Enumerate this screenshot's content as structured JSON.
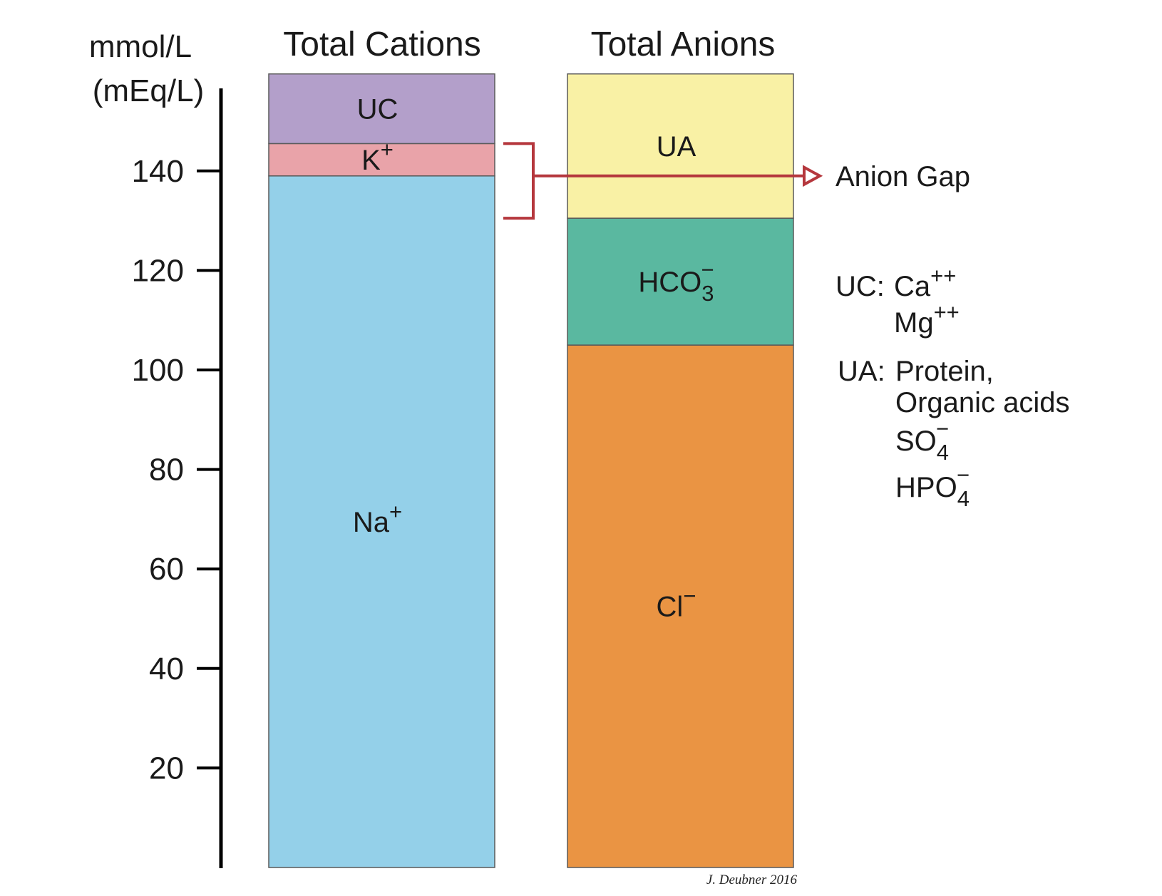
{
  "chart_data": {
    "type": "bar",
    "stacked": true,
    "y_axis": {
      "title_line1": "mmol/L",
      "title_line2": "(mEq/L)",
      "ticks": [
        20,
        40,
        60,
        80,
        100,
        120,
        140
      ],
      "ylim": [
        0,
        154
      ]
    },
    "columns": [
      {
        "title": "Total Cations",
        "segments": [
          {
            "key": "na",
            "base": "Na",
            "sup": "+",
            "sub": "",
            "value": 139,
            "color": "#94d0e9"
          },
          {
            "key": "k",
            "base": "K",
            "sup": "+",
            "sub": "",
            "value": 6.5,
            "color": "#e9a3a9"
          },
          {
            "key": "uc",
            "base": "UC",
            "sup": "",
            "sub": "",
            "value": 14,
            "color": "#b39fca"
          }
        ]
      },
      {
        "title": "Total Anions",
        "segments": [
          {
            "key": "cl",
            "base": "Cl",
            "sup": "−",
            "sub": "",
            "value": 105,
            "color": "#ea9443"
          },
          {
            "key": "hco3",
            "base": "HCO",
            "sup": "−",
            "sub": "3",
            "value": 25.5,
            "color": "#5ab8a0"
          },
          {
            "key": "ua",
            "base": "UA",
            "sup": "",
            "sub": "",
            "value": 29,
            "color": "#f9f1a5"
          }
        ]
      }
    ],
    "annotation": {
      "label": "Anion Gap",
      "color": "#b5373d"
    },
    "legend": {
      "uc_key": "UC:",
      "uc_items": [
        {
          "base": "Ca",
          "sup": "++",
          "sub": ""
        },
        {
          "base": "Mg",
          "sup": "++",
          "sub": ""
        }
      ],
      "ua_key": "UA:",
      "ua_items": [
        {
          "base": "Protein,",
          "sup": "",
          "sub": ""
        },
        {
          "base": "Organic acids",
          "sup": "",
          "sub": ""
        },
        {
          "base": "SO",
          "sup": "−",
          "sub": "4"
        },
        {
          "base": "HPO",
          "sup": "−",
          "sub": "4"
        }
      ]
    },
    "credit": "J. Deubner 2016"
  }
}
